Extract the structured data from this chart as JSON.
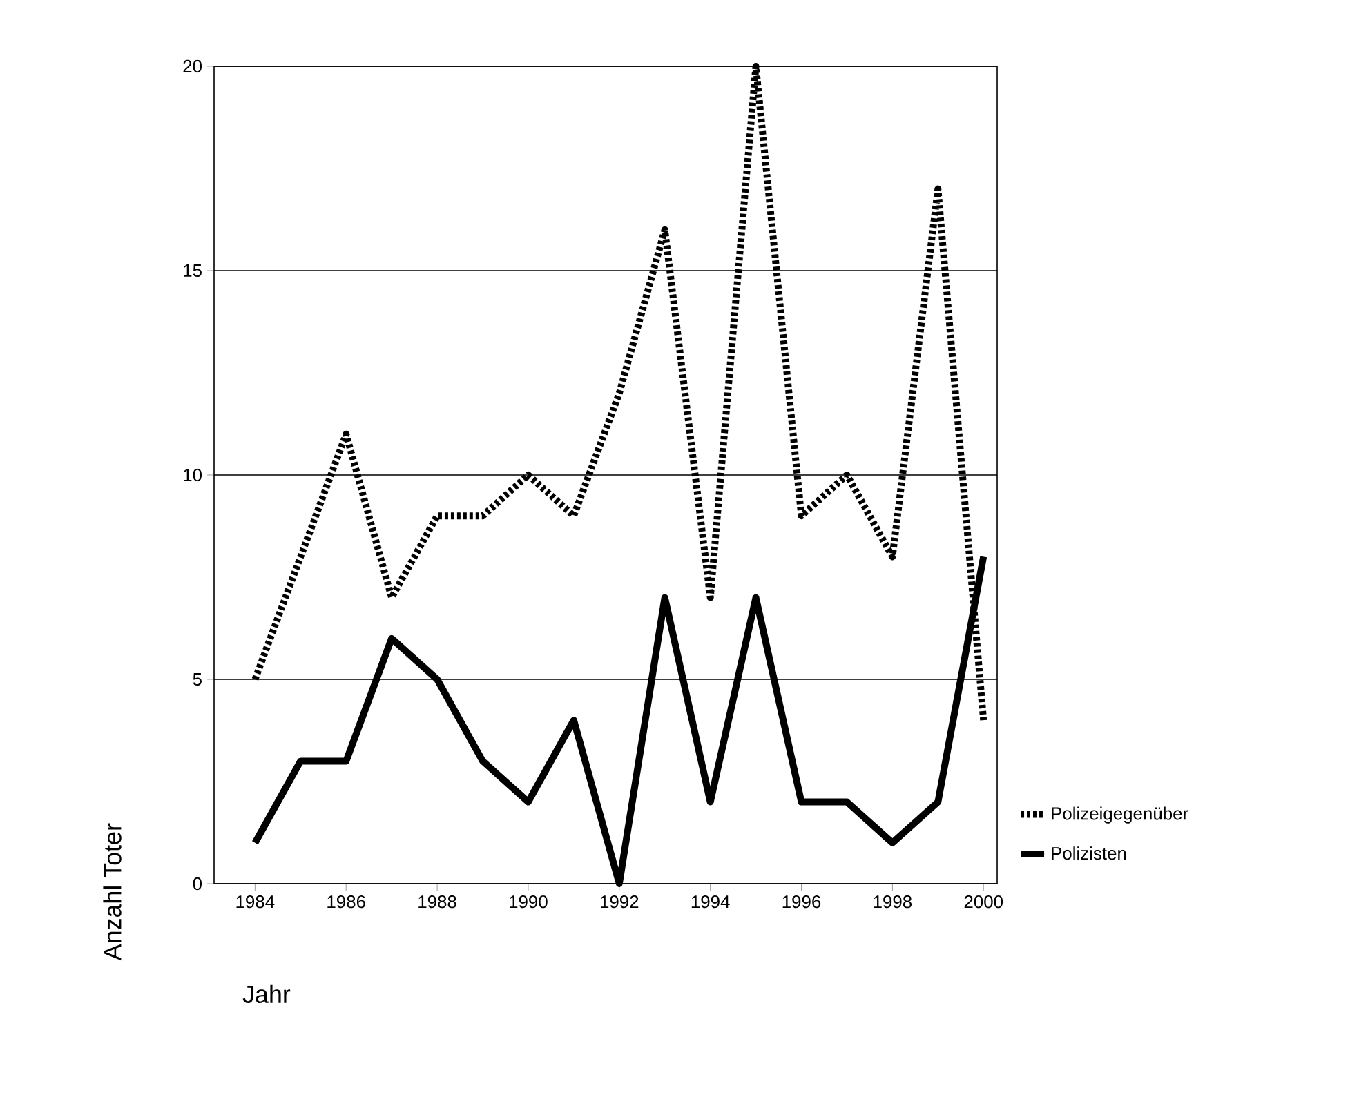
{
  "chart_data": {
    "type": "line",
    "xlabel": "Jahr",
    "ylabel": "Anzahl Toter",
    "x": [
      1984,
      1985,
      1986,
      1987,
      1988,
      1989,
      1990,
      1991,
      1992,
      1993,
      1994,
      1995,
      1996,
      1997,
      1998,
      1999,
      2000
    ],
    "series": [
      {
        "name": "Polizeigegenüber",
        "color": "#000000",
        "line_style": "dotted",
        "values": [
          5,
          8,
          11,
          7,
          9,
          9,
          10,
          9,
          12,
          16,
          7,
          20,
          9,
          10,
          8,
          17,
          4
        ]
      },
      {
        "name": "Polizisten",
        "color": "#000000",
        "line_style": "solid",
        "values": [
          1,
          3,
          3,
          6,
          5,
          3,
          2,
          4,
          0,
          7,
          2,
          7,
          2,
          2,
          1,
          2,
          8
        ]
      }
    ],
    "xlim": [
      1983.1,
      2000.3
    ],
    "ylim": [
      0,
      20
    ],
    "xticks": [
      1984,
      1986,
      1988,
      1990,
      1992,
      1994,
      1996,
      1998,
      2000
    ],
    "yticks": [
      0,
      5,
      10,
      15,
      20
    ],
    "grid": "y",
    "legend": "right",
    "marker": "none"
  }
}
